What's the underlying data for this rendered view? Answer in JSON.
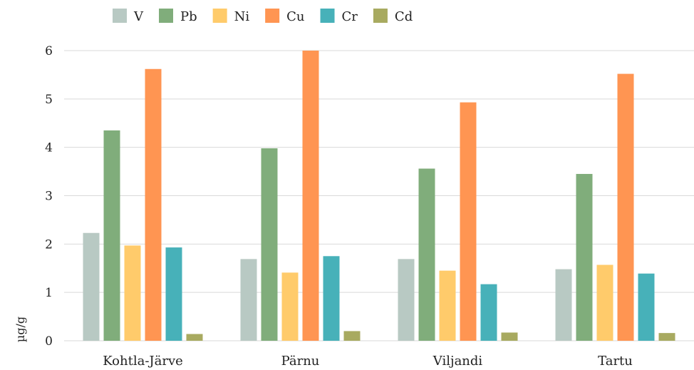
{
  "chart_data": {
    "type": "bar",
    "categories": [
      "Kohtla-Järve",
      "Pärnu",
      "Viljandi",
      "Tartu"
    ],
    "series": [
      {
        "name": "V",
        "color": "#b8c9c3",
        "values": [
          2.23,
          1.69,
          1.69,
          1.48
        ]
      },
      {
        "name": "Pb",
        "color": "#80ad7b",
        "values": [
          4.35,
          3.98,
          3.56,
          3.45
        ]
      },
      {
        "name": "Ni",
        "color": "#ffcb6b",
        "values": [
          1.97,
          1.41,
          1.45,
          1.57
        ]
      },
      {
        "name": "Cu",
        "color": "#ff9552",
        "values": [
          5.62,
          6.0,
          4.93,
          5.52
        ]
      },
      {
        "name": "Cr",
        "color": "#47b1b9",
        "values": [
          1.93,
          1.75,
          1.17,
          1.39
        ]
      },
      {
        "name": "Cd",
        "color": "#a8aa60",
        "values": [
          0.14,
          0.2,
          0.17,
          0.16
        ]
      }
    ],
    "ylabel": "µg/g",
    "ylim": [
      0,
      6
    ],
    "yticks": [
      0,
      1,
      2,
      3,
      4,
      5,
      6
    ],
    "grid": true,
    "legend": "top-left"
  }
}
